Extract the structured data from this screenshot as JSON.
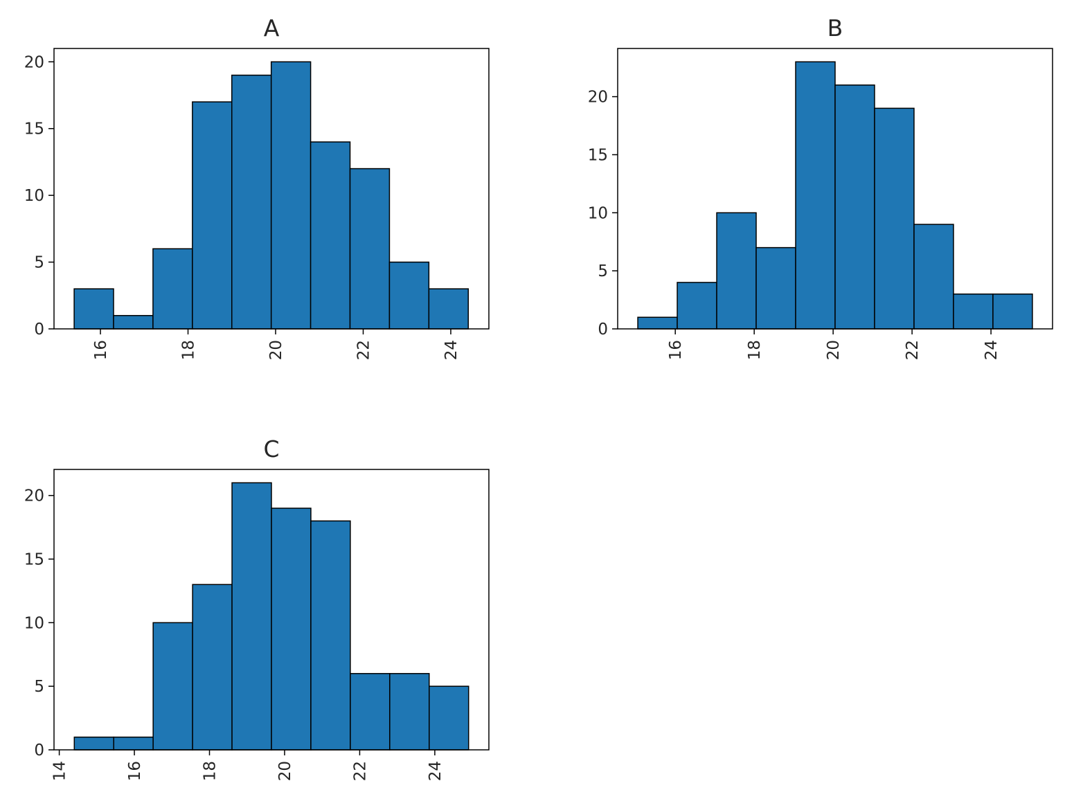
{
  "chart_data": [
    {
      "type": "bar",
      "title": "A",
      "bar_color": "#1f77b4",
      "edge_color": "#000000",
      "bins": [
        {
          "start": 15.4,
          "end": 16.3,
          "count": 3
        },
        {
          "start": 16.3,
          "end": 17.2,
          "count": 1
        },
        {
          "start": 17.2,
          "end": 18.1,
          "count": 6
        },
        {
          "start": 18.1,
          "end": 19.0,
          "count": 17
        },
        {
          "start": 19.0,
          "end": 19.9,
          "count": 19
        },
        {
          "start": 19.9,
          "end": 20.8,
          "count": 20
        },
        {
          "start": 20.8,
          "end": 21.7,
          "count": 14
        },
        {
          "start": 21.7,
          "end": 22.6,
          "count": 12
        },
        {
          "start": 22.6,
          "end": 23.5,
          "count": 5
        },
        {
          "start": 23.5,
          "end": 24.4,
          "count": 3
        }
      ],
      "xlim": [
        14.94,
        24.87
      ],
      "ylim": [
        0,
        21
      ],
      "xticks": [
        16,
        18,
        20,
        22,
        24
      ],
      "xtick_labels": [
        "16",
        "18",
        "20",
        "22",
        "24"
      ],
      "yticks": [
        0,
        5,
        10,
        15,
        20
      ],
      "ytick_labels": [
        "0",
        "5",
        "10",
        "15",
        "20"
      ],
      "xtick_rotation": 90
    },
    {
      "type": "bar",
      "title": "B",
      "bar_color": "#1f77b4",
      "edge_color": "#000000",
      "bins": [
        {
          "start": 15.05,
          "end": 16.05,
          "count": 1
        },
        {
          "start": 16.05,
          "end": 17.05,
          "count": 4
        },
        {
          "start": 17.05,
          "end": 18.05,
          "count": 10
        },
        {
          "start": 18.05,
          "end": 19.05,
          "count": 7
        },
        {
          "start": 19.05,
          "end": 20.05,
          "count": 23
        },
        {
          "start": 20.05,
          "end": 21.05,
          "count": 21
        },
        {
          "start": 21.05,
          "end": 22.05,
          "count": 19
        },
        {
          "start": 22.05,
          "end": 23.05,
          "count": 9
        },
        {
          "start": 23.05,
          "end": 24.05,
          "count": 3
        },
        {
          "start": 24.05,
          "end": 25.05,
          "count": 3
        }
      ],
      "xlim": [
        14.54,
        25.56
      ],
      "ylim": [
        0,
        24.15
      ],
      "xticks": [
        16,
        18,
        20,
        22,
        24
      ],
      "xtick_labels": [
        "16",
        "18",
        "20",
        "22",
        "24"
      ],
      "yticks": [
        0,
        5,
        10,
        15,
        20
      ],
      "ytick_labels": [
        "0",
        "5",
        "10",
        "15",
        "20"
      ],
      "xtick_rotation": 90
    },
    {
      "type": "bar",
      "title": "C",
      "bar_color": "#1f77b4",
      "edge_color": "#000000",
      "bins": [
        {
          "start": 14.4,
          "end": 15.45,
          "count": 1
        },
        {
          "start": 15.45,
          "end": 16.5,
          "count": 1
        },
        {
          "start": 16.5,
          "end": 17.55,
          "count": 10
        },
        {
          "start": 17.55,
          "end": 18.6,
          "count": 13
        },
        {
          "start": 18.6,
          "end": 19.65,
          "count": 21
        },
        {
          "start": 19.65,
          "end": 20.7,
          "count": 19
        },
        {
          "start": 20.7,
          "end": 21.75,
          "count": 18
        },
        {
          "start": 21.75,
          "end": 22.8,
          "count": 6
        },
        {
          "start": 22.8,
          "end": 23.85,
          "count": 6
        },
        {
          "start": 23.85,
          "end": 24.9,
          "count": 5
        }
      ],
      "xlim": [
        13.86,
        25.44
      ],
      "ylim": [
        0,
        22.05
      ],
      "xticks": [
        14,
        16,
        18,
        20,
        22,
        24
      ],
      "xtick_labels": [
        "14",
        "16",
        "18",
        "20",
        "22",
        "24"
      ],
      "yticks": [
        0,
        5,
        10,
        15,
        20
      ],
      "ytick_labels": [
        "0",
        "5",
        "10",
        "15",
        "20"
      ],
      "xtick_rotation": 90
    }
  ]
}
